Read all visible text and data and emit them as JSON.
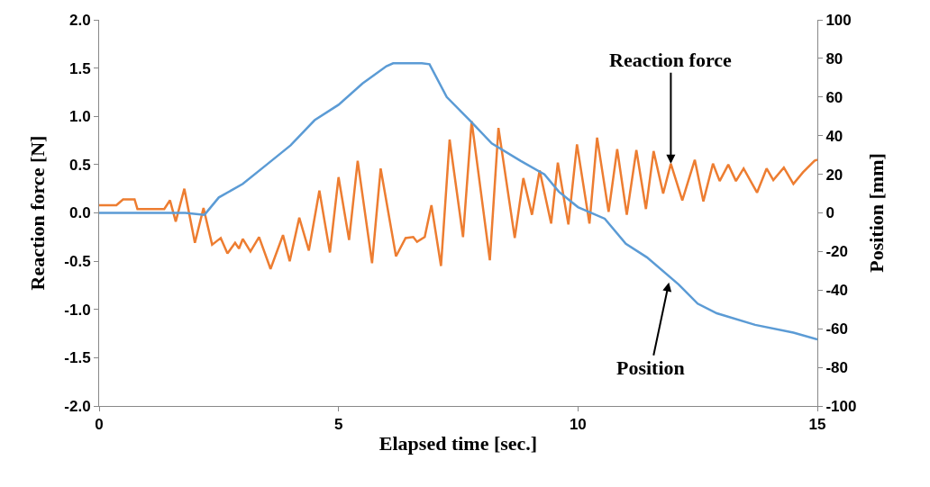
{
  "chart_data": {
    "type": "line",
    "xlabel": "Elapsed time [sec.]",
    "ylabel": "Reaction force [N]",
    "y2label": "Position [mm]",
    "xlim": [
      0,
      15
    ],
    "xticks": [
      0,
      5,
      10,
      15
    ],
    "ylim": [
      -2.0,
      2.0
    ],
    "yticks": [
      {
        "value": -2,
        "label": "-2.0"
      },
      {
        "value": -1.5,
        "label": "-1.5"
      },
      {
        "value": -1,
        "label": "-1.0"
      },
      {
        "value": -0.5,
        "label": "-0.5"
      },
      {
        "value": 0,
        "label": "0.0"
      },
      {
        "value": 0.5,
        "label": "0.5"
      },
      {
        "value": 1,
        "label": "1.0"
      },
      {
        "value": 1.5,
        "label": "1.5"
      },
      {
        "value": 2,
        "label": "2.0"
      }
    ],
    "y2lim": [
      -100,
      100
    ],
    "y2ticks": [
      -100,
      -80,
      -60,
      -40,
      -20,
      0,
      20,
      40,
      60,
      80,
      100
    ],
    "marker": "none",
    "line_style": "solid",
    "series": [
      {
        "color": "#ed7d31",
        "x": [
          0,
          0.36,
          0.5,
          0.74,
          0.8,
          1.36,
          1.48,
          1.6,
          1.78,
          2.0,
          2.18,
          2.36,
          2.54,
          2.68,
          2.84,
          2.92,
          3.0,
          3.16,
          3.34,
          3.58,
          3.84,
          3.98,
          4.18,
          4.38,
          4.6,
          4.82,
          5.0,
          5.22,
          5.4,
          5.7,
          5.88,
          6.2,
          6.4,
          6.56,
          6.64,
          6.8,
          6.94,
          7.14,
          7.32,
          7.6,
          7.78,
          8.16,
          8.34,
          8.68,
          8.86,
          9.04,
          9.2,
          9.44,
          9.58,
          9.8,
          9.98,
          10.24,
          10.4,
          10.64,
          10.82,
          11.02,
          11.22,
          11.42,
          11.58,
          11.78,
          11.94,
          12.18,
          12.44,
          12.62,
          12.82,
          12.96,
          13.14,
          13.3,
          13.46,
          13.74,
          13.94,
          14.08,
          14.3,
          14.5,
          14.7,
          14.94,
          15
        ],
        "values": [
          0.08,
          0.08,
          0.14,
          0.14,
          0.04,
          0.04,
          0.13,
          -0.09,
          0.25,
          -0.31,
          0.05,
          -0.33,
          -0.26,
          -0.42,
          -0.31,
          -0.37,
          -0.27,
          -0.4,
          -0.25,
          -0.58,
          -0.23,
          -0.5,
          -0.05,
          -0.39,
          0.23,
          -0.41,
          0.37,
          -0.28,
          0.54,
          -0.52,
          0.46,
          -0.45,
          -0.26,
          -0.25,
          -0.3,
          -0.25,
          0.08,
          -0.55,
          0.76,
          -0.25,
          0.95,
          -0.49,
          0.88,
          -0.26,
          0.36,
          -0.02,
          0.44,
          -0.11,
          0.52,
          -0.12,
          0.71,
          -0.11,
          0.78,
          0.01,
          0.66,
          -0.02,
          0.65,
          0.04,
          0.64,
          0.2,
          0.51,
          0.13,
          0.55,
          0.12,
          0.51,
          0.33,
          0.5,
          0.33,
          0.46,
          0.21,
          0.46,
          0.34,
          0.47,
          0.3,
          0.42,
          0.54,
          0.55
        ]
      },
      {
        "color": "#5b9bd5",
        "axis": "y2",
        "x": [
          0,
          1.8,
          2.2,
          2.5,
          3,
          3.5,
          4,
          4.5,
          5,
          5.5,
          6,
          6.14,
          6.74,
          6.9,
          7.26,
          7.74,
          8.2,
          8.8,
          9.3,
          9.6,
          10,
          10.56,
          11,
          11.44,
          12.1,
          12.5,
          12.9,
          13.7,
          14.5,
          15
        ],
        "values": [
          0,
          0,
          -1,
          8,
          15,
          25,
          35,
          48,
          56,
          67,
          76,
          77.5,
          77.5,
          77,
          60,
          48,
          36,
          27,
          20,
          11,
          3,
          -3,
          -16,
          -23,
          -37,
          -47,
          -52,
          -58,
          -62,
          -65.5
        ]
      }
    ],
    "annotations": [
      {
        "text": "Reaction force",
        "x": 11.94,
        "y": 0.51
      },
      {
        "text": "Position",
        "x": 11.9,
        "y": -0.72
      }
    ]
  }
}
